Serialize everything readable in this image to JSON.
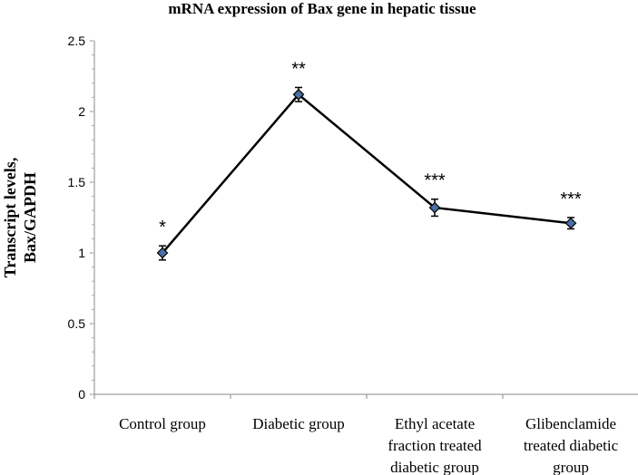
{
  "chart_data": {
    "type": "line",
    "title": "mRNA expression of Bax gene in hepatic tissue",
    "ylabel": [
      "Transcript levels,",
      "Bax/GAPDH"
    ],
    "xlabel": "",
    "categories": [
      [
        "Control group"
      ],
      [
        "Diabetic group"
      ],
      [
        "Ethyl acetate",
        "fraction treated",
        "diabetic group"
      ],
      [
        "Glibenclamide",
        "treated diabetic",
        "group"
      ]
    ],
    "values": [
      1.0,
      2.12,
      1.32,
      1.21
    ],
    "errors": [
      0.05,
      0.05,
      0.06,
      0.04
    ],
    "annotations": [
      "*",
      "**",
      "***",
      "***"
    ],
    "ylim": [
      0,
      2.5
    ],
    "yticks": [
      "0",
      "0.5",
      "1",
      "1.5",
      "2",
      "2.5"
    ],
    "grid": false,
    "line_color": "#000000",
    "marker_color": "#4a6fa5"
  }
}
